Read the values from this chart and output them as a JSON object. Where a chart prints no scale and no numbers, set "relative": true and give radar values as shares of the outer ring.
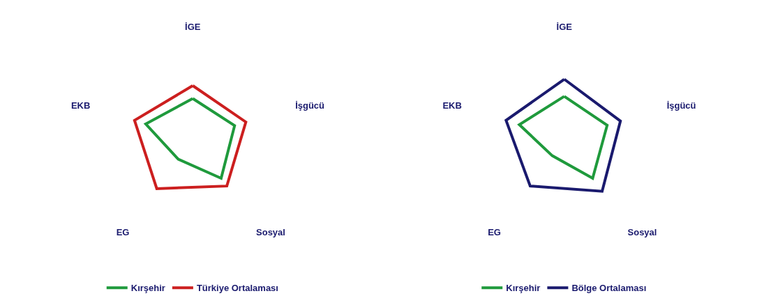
{
  "chart_data": [
    {
      "type": "radar",
      "relative": true,
      "legend": "bottom",
      "categories": [
        "İGE",
        "İşgücü",
        "Sosyal",
        "EG",
        "EKB"
      ],
      "series": [
        {
          "name": "Kırşehir",
          "color": "#1f9a3c",
          "values": [
            0.38,
            0.41,
            0.45,
            0.23,
            0.46
          ]
        },
        {
          "name": "Türkiye Ortalaması",
          "color": "#cc1f1f",
          "values": [
            0.5,
            0.52,
            0.54,
            0.57,
            0.57
          ]
        }
      ]
    },
    {
      "type": "radar",
      "relative": true,
      "legend": "bottom",
      "categories": [
        "İGE",
        "İşgücü",
        "Sosyal",
        "EG",
        "EKB"
      ],
      "series": [
        {
          "name": "Kırşehir",
          "color": "#1f9a3c",
          "values": [
            0.4,
            0.42,
            0.45,
            0.19,
            0.44
          ]
        },
        {
          "name": "Bölge Ortalaması",
          "color": "#1a1a6e",
          "values": [
            0.56,
            0.55,
            0.6,
            0.54,
            0.57
          ]
        }
      ]
    }
  ]
}
